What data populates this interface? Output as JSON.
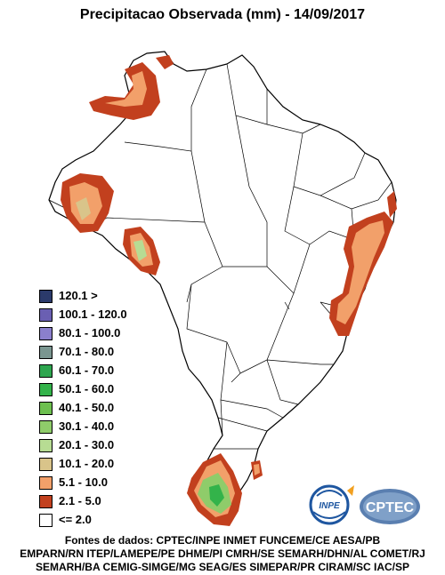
{
  "title": "Precipitacao Observada (mm) - 14/09/2017",
  "legend": [
    {
      "label": "120.1 >",
      "color": "#2b3a6b"
    },
    {
      "label": "100.1 - 120.0",
      "color": "#6a5fb2"
    },
    {
      "label": "80.1 - 100.0",
      "color": "#8b7fcc"
    },
    {
      "label": "70.1 - 80.0",
      "color": "#7a9690"
    },
    {
      "label": "60.1 - 70.0",
      "color": "#2ea64f"
    },
    {
      "label": "50.1 - 60.0",
      "color": "#33b34a"
    },
    {
      "label": "40.1 - 50.0",
      "color": "#6dc04f"
    },
    {
      "label": "30.1 - 40.0",
      "color": "#8fcc6a"
    },
    {
      "label": "20.1 - 30.0",
      "color": "#b7dc93"
    },
    {
      "label": "10.1 - 20.0",
      "color": "#d9c48a"
    },
    {
      "label": "5.1 - 10.0",
      "color": "#f2a06a"
    },
    {
      "label": "2.1 - 5.0",
      "color": "#c2401e"
    },
    {
      "label": "<= 2.0",
      "color": "#ffffff"
    }
  ],
  "sources": [
    "Fontes de dados: CPTEC/INPE INMET FUNCEME/CE AESA/PB",
    "EMPARN/RN ITEP/LAMEPE/PE DHME/PI CMRH/SE SEMARH/DHN/AL COMET/RJ",
    "SEMARH/BA CEMIG-SIMGE/MG SEAG/ES SIMEPAR/PR CIRAM/SC IAC/SP"
  ],
  "logos": {
    "inpe": "INPE",
    "cptec": "CPTEC"
  }
}
